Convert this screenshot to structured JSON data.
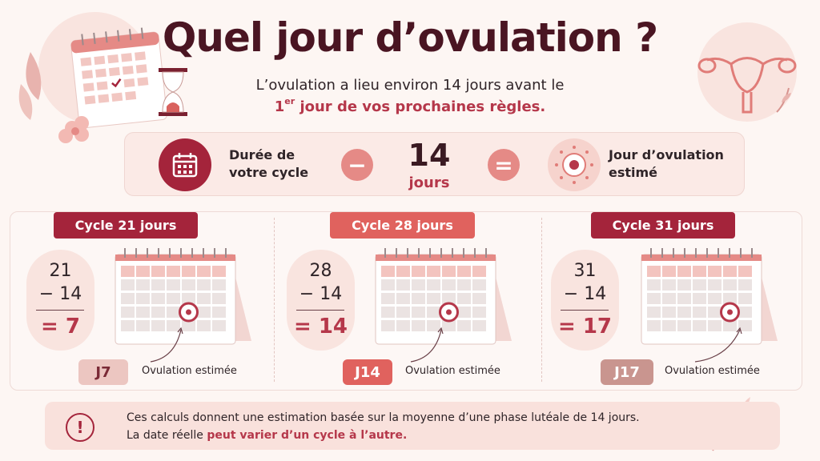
{
  "title": "Quel jour d’ovulation ?",
  "subtitle": {
    "line1": "L’ovulation a lieu environ 14 jours avant le",
    "line2_num": "1",
    "line2_sup": "er",
    "line2_rest": " jour de vos prochaines règles."
  },
  "formula": {
    "cycle_line1": "Durée de",
    "cycle_line2": "votre cycle",
    "minus": "−",
    "value": "14",
    "unit": "jours",
    "equals": "=",
    "result_line1": "Jour d’ovulation",
    "result_line2": "estimé"
  },
  "cycles": [
    {
      "label": "Cycle 21 jours",
      "a": "21",
      "b": "− 14",
      "result": "= 7",
      "day": "J7",
      "caption": "Ovulation estimée",
      "ovulation_row": 3,
      "ovulation_col": 4
    },
    {
      "label": "Cycle 28 jours",
      "a": "28",
      "b": "− 14",
      "result": "= 14",
      "day": "J14",
      "caption": "Ovulation estimée",
      "ovulation_row": 3,
      "ovulation_col": 4
    },
    {
      "label": "Cycle 31 jours",
      "a": "31",
      "b": "− 14",
      "result": "= 17",
      "day": "J17",
      "caption": "Ovulation estimée",
      "ovulation_row": 3,
      "ovulation_col": 5
    }
  ],
  "note": {
    "icon": "!",
    "line1": "Ces calculs donnent une estimation basée sur la moyenne d’une phase lutéale de 14 jours.",
    "line2_prefix": "La date réelle ",
    "line2_bold": "peut varier d’un cycle à l’autre."
  },
  "colors": {
    "primary": "#a4243b",
    "accent": "#e0625e",
    "soft": "#f9e4df",
    "title": "#4a1522"
  }
}
